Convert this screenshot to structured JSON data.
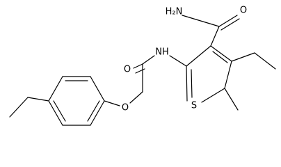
{
  "atoms": [
    {
      "label": "H₂N"
    },
    {
      "label": "O"
    },
    {
      "label": "NH"
    },
    {
      "label": "O"
    },
    {
      "label": "S"
    },
    {
      "label": "O"
    }
  ]
}
